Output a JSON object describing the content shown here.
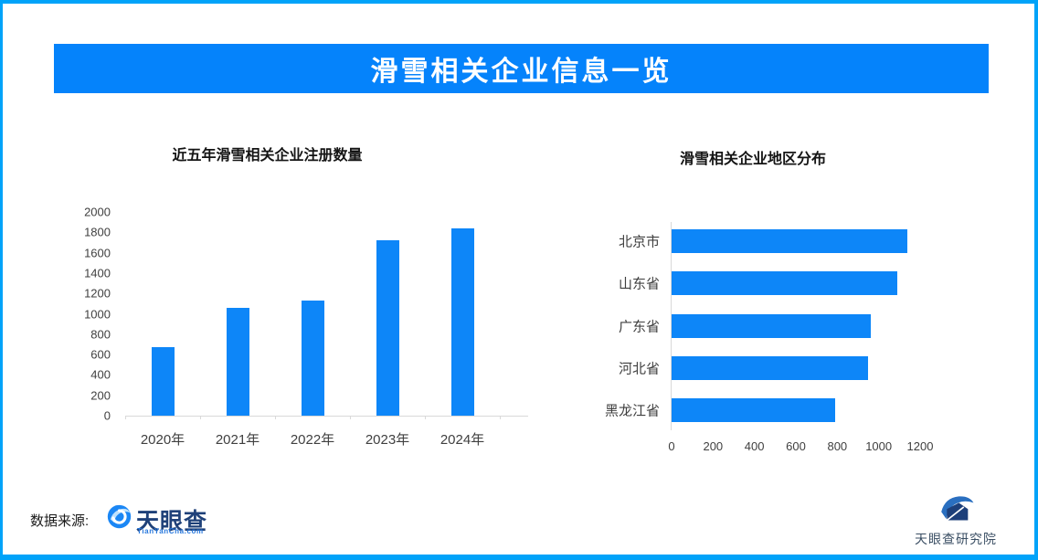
{
  "page": {
    "title": "滑雪相关企业信息一览",
    "banner_color": "#0583fb",
    "border_color": "#00a3f9",
    "bar_color": "#0d86f8"
  },
  "chart_data": [
    {
      "type": "bar",
      "title": "近五年滑雪相关企业注册数量",
      "categories": [
        "2020年",
        "2021年",
        "2022年",
        "2023年",
        "2024年"
      ],
      "values": [
        670,
        1060,
        1130,
        1720,
        1840
      ],
      "xlabel": "",
      "ylabel": "",
      "ylim": [
        0,
        2000
      ],
      "ytick_step": 200,
      "grid": false,
      "legend_position": "none",
      "bar_color": "#0d86f8"
    },
    {
      "type": "bar-horizontal",
      "title": "滑雪相关企业地区分布",
      "categories": [
        "北京市",
        "山东省",
        "广东省",
        "河北省",
        "黑龙江省"
      ],
      "values": [
        1140,
        1090,
        960,
        950,
        790
      ],
      "xlabel": "",
      "ylabel": "",
      "xlim": [
        0,
        1200
      ],
      "xtick_step": 200,
      "grid": false,
      "legend_position": "none",
      "bar_color": "#0d86f8"
    }
  ],
  "footer": {
    "source_label": "数据来源:",
    "source_logo": {
      "name": "天眼查",
      "sub": "TianYanCha.com"
    },
    "right_logo": {
      "name": "天眼查研究院"
    }
  }
}
